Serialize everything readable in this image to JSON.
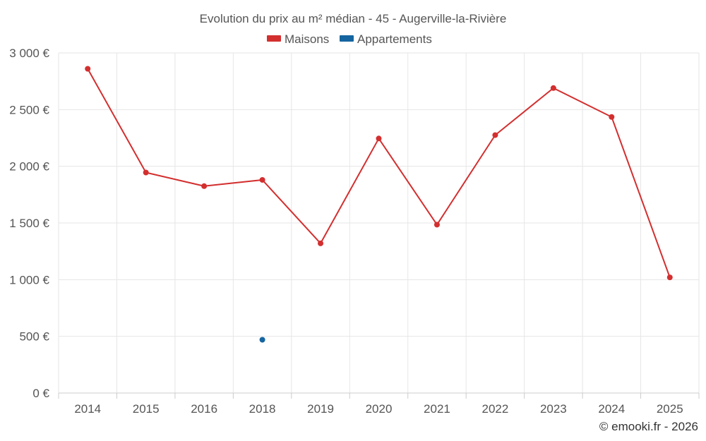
{
  "chart_data": {
    "type": "line",
    "title": "Evolution du prix au m² médian - 45 - Augerville-la-Rivière",
    "categories": [
      "2014",
      "2015",
      "2016",
      "2018",
      "2019",
      "2020",
      "2021",
      "2022",
      "2023",
      "2024",
      "2025"
    ],
    "series": [
      {
        "name": "Maisons",
        "color": "#d32f2f",
        "values": [
          2860,
          1945,
          1825,
          1880,
          1320,
          2245,
          1485,
          2275,
          2690,
          2435,
          1020
        ]
      },
      {
        "name": "Appartements",
        "color": "#1565a0",
        "values": [
          null,
          null,
          null,
          470,
          null,
          null,
          null,
          null,
          null,
          null,
          null
        ]
      }
    ],
    "ylim": [
      0,
      3000
    ],
    "yticks": [
      0,
      500,
      1000,
      1500,
      2000,
      2500,
      3000
    ],
    "ytick_labels": [
      "0 €",
      "500 €",
      "1 000 €",
      "1 500 €",
      "2 000 €",
      "2 500 €",
      "3 000 €"
    ],
    "grid": true,
    "legend_position": "top-center"
  },
  "credit": "© emooki.fr - 2026"
}
